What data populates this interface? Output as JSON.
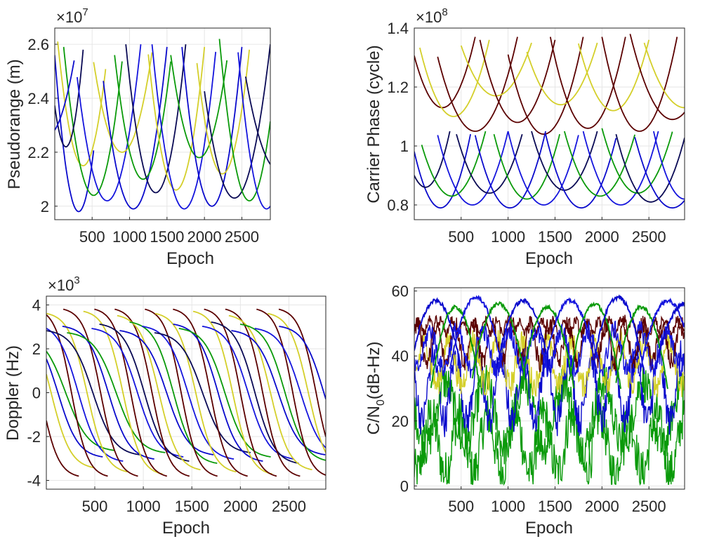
{
  "figure": {
    "colors": [
      "#d4cf2a",
      "#5b0000",
      "#0a9a0a",
      "#0a0acc",
      "#0a0a55",
      "#1515dd"
    ]
  },
  "chart_data": [
    {
      "id": "pseudorange",
      "type": "line",
      "ylabel": "Pseudorange (m)",
      "xlabel": "Epoch",
      "exponent_base": "×10",
      "exponent": "7",
      "xlim": [
        1,
        2880
      ],
      "ylim": [
        19.5,
        26.6
      ],
      "xticks": [
        500,
        1000,
        1500,
        2000,
        2500
      ],
      "xtick_labels": [
        "500",
        "1000",
        "1500",
        "2000",
        "2500"
      ],
      "yticks": [
        20,
        22,
        24,
        26
      ],
      "ytick_labels": [
        "2",
        "2.2",
        "2.4",
        "2.6"
      ],
      "grid": true,
      "legend": "none",
      "arcs": [
        {
          "c": 3,
          "x0": 0,
          "x1": 520,
          "xm": 320,
          "ymin": 19.8,
          "ytop": 25.6
        },
        {
          "c": 0,
          "x0": 40,
          "x1": 680,
          "xm": 380,
          "ymin": 21.5,
          "ytop": 26.1
        },
        {
          "c": 2,
          "x0": 120,
          "x1": 900,
          "xm": 520,
          "ymin": 20.4,
          "ytop": 25.9
        },
        {
          "c": 4,
          "x0": 0,
          "x1": 380,
          "xm": 150,
          "ymin": 22.2,
          "ytop": 25.8
        },
        {
          "c": 5,
          "x0": 300,
          "x1": 1150,
          "xm": 700,
          "ymin": 20.2,
          "ytop": 26.0
        },
        {
          "c": 0,
          "x0": 520,
          "x1": 1300,
          "xm": 900,
          "ymin": 22.0,
          "ytop": 25.7
        },
        {
          "c": 3,
          "x0": 650,
          "x1": 1500,
          "xm": 1050,
          "ymin": 19.9,
          "ytop": 25.9
        },
        {
          "c": 2,
          "x0": 800,
          "x1": 1550,
          "xm": 1180,
          "ymin": 21.0,
          "ytop": 25.6
        },
        {
          "c": 4,
          "x0": 950,
          "x1": 1750,
          "xm": 1350,
          "ymin": 20.5,
          "ytop": 26.0
        },
        {
          "c": 0,
          "x0": 1250,
          "x1": 2000,
          "xm": 1620,
          "ymin": 20.6,
          "ytop": 25.9
        },
        {
          "c": 5,
          "x0": 1300,
          "x1": 2150,
          "xm": 1730,
          "ymin": 19.9,
          "ytop": 26.0
        },
        {
          "c": 2,
          "x0": 1550,
          "x1": 2300,
          "xm": 1930,
          "ymin": 21.8,
          "ytop": 25.6
        },
        {
          "c": 3,
          "x0": 1700,
          "x1": 2500,
          "xm": 2100,
          "ymin": 20.0,
          "ytop": 25.9
        },
        {
          "c": 0,
          "x0": 1900,
          "x1": 2600,
          "xm": 2240,
          "ymin": 21.2,
          "ytop": 25.8
        },
        {
          "c": 4,
          "x0": 2000,
          "x1": 2880,
          "xm": 2400,
          "ymin": 20.3,
          "ytop": 26.0
        },
        {
          "c": 2,
          "x0": 2200,
          "x1": 2880,
          "xm": 2600,
          "ymin": 20.2,
          "ytop": 26.2
        },
        {
          "c": 5,
          "x0": 2450,
          "x1": 2880,
          "xm": 2830,
          "ymin": 19.9,
          "ytop": 25.7
        },
        {
          "c": 3,
          "x0": 0,
          "x1": 260,
          "xm": -100,
          "ymin": 22.6,
          "ytop": 25.4
        },
        {
          "c": 4,
          "x0": 2550,
          "x1": 2880,
          "xm": 3000,
          "ymin": 21.3,
          "ytop": 24.8
        }
      ]
    },
    {
      "id": "carrier_phase",
      "type": "line",
      "ylabel": "Carrier Phase (cycle)",
      "xlabel": "Epoch",
      "exponent_base": "×10",
      "exponent": "8",
      "xlim": [
        1,
        2880
      ],
      "ylim": [
        0.75,
        1.4
      ],
      "xticks": [
        500,
        1000,
        1500,
        2000,
        2500
      ],
      "xtick_labels": [
        "500",
        "1000",
        "1500",
        "2000",
        "2500"
      ],
      "yticks": [
        0.8,
        1.0,
        1.2,
        1.4
      ],
      "ytick_labels": [
        "0.8",
        "1",
        "1.2",
        "1.4"
      ],
      "grid": true,
      "legend": "none",
      "arcs": [
        {
          "c": 1,
          "x0": 0,
          "x1": 650,
          "xm": 300,
          "ymin": 1.13,
          "ytop": 1.37
        },
        {
          "c": 0,
          "x0": 60,
          "x1": 800,
          "xm": 420,
          "ymin": 1.1,
          "ytop": 1.36
        },
        {
          "c": 1,
          "x0": 250,
          "x1": 1100,
          "xm": 650,
          "ymin": 1.05,
          "ytop": 1.37
        },
        {
          "c": 0,
          "x0": 500,
          "x1": 1250,
          "xm": 870,
          "ymin": 1.17,
          "ytop": 1.35
        },
        {
          "c": 1,
          "x0": 700,
          "x1": 1500,
          "xm": 1100,
          "ymin": 1.08,
          "ytop": 1.36
        },
        {
          "c": 1,
          "x0": 1000,
          "x1": 1800,
          "xm": 1380,
          "ymin": 1.04,
          "ytop": 1.37
        },
        {
          "c": 0,
          "x0": 1200,
          "x1": 1950,
          "xm": 1560,
          "ymin": 1.14,
          "ytop": 1.35
        },
        {
          "c": 1,
          "x0": 1450,
          "x1": 2250,
          "xm": 1850,
          "ymin": 1.06,
          "ytop": 1.37
        },
        {
          "c": 0,
          "x0": 1750,
          "x1": 2500,
          "xm": 2120,
          "ymin": 1.12,
          "ytop": 1.36
        },
        {
          "c": 1,
          "x0": 2000,
          "x1": 2800,
          "xm": 2400,
          "ymin": 1.05,
          "ytop": 1.37
        },
        {
          "c": 1,
          "x0": 2300,
          "x1": 2880,
          "xm": 2750,
          "ymin": 1.09,
          "ytop": 1.38
        },
        {
          "c": 0,
          "x0": 2450,
          "x1": 2880,
          "xm": 2880,
          "ymin": 1.13,
          "ytop": 1.35
        },
        {
          "c": 3,
          "x0": 0,
          "x1": 600,
          "xm": 280,
          "ymin": 0.79,
          "ytop": 1.04
        },
        {
          "c": 4,
          "x0": 0,
          "x1": 380,
          "xm": 120,
          "ymin": 0.86,
          "ytop": 1.05
        },
        {
          "c": 2,
          "x0": 80,
          "x1": 760,
          "xm": 400,
          "ymin": 0.83,
          "ytop": 1.05
        },
        {
          "c": 5,
          "x0": 250,
          "x1": 1000,
          "xm": 620,
          "ymin": 0.8,
          "ytop": 1.05
        },
        {
          "c": 4,
          "x0": 450,
          "x1": 1150,
          "xm": 800,
          "ymin": 0.84,
          "ytop": 1.04
        },
        {
          "c": 3,
          "x0": 650,
          "x1": 1400,
          "xm": 1020,
          "ymin": 0.79,
          "ytop": 1.05
        },
        {
          "c": 2,
          "x0": 850,
          "x1": 1550,
          "xm": 1200,
          "ymin": 0.82,
          "ytop": 1.04
        },
        {
          "c": 5,
          "x0": 1000,
          "x1": 1750,
          "xm": 1380,
          "ymin": 0.8,
          "ytop": 1.05
        },
        {
          "c": 4,
          "x0": 1250,
          "x1": 1950,
          "xm": 1600,
          "ymin": 0.85,
          "ytop": 1.05
        },
        {
          "c": 3,
          "x0": 1400,
          "x1": 2150,
          "xm": 1780,
          "ymin": 0.79,
          "ytop": 1.04
        },
        {
          "c": 2,
          "x0": 1600,
          "x1": 2350,
          "xm": 1980,
          "ymin": 0.83,
          "ytop": 1.05
        },
        {
          "c": 5,
          "x0": 1800,
          "x1": 2600,
          "xm": 2200,
          "ymin": 0.8,
          "ytop": 1.05
        },
        {
          "c": 2,
          "x0": 2000,
          "x1": 2750,
          "xm": 2380,
          "ymin": 0.84,
          "ytop": 1.06
        },
        {
          "c": 4,
          "x0": 2150,
          "x1": 2880,
          "xm": 2520,
          "ymin": 0.81,
          "ytop": 1.04
        },
        {
          "c": 3,
          "x0": 2350,
          "x1": 2880,
          "xm": 2750,
          "ymin": 0.79,
          "ytop": 1.03
        },
        {
          "c": 5,
          "x0": 2550,
          "x1": 2880,
          "xm": 2880,
          "ymin": 0.82,
          "ytop": 1.05
        }
      ]
    },
    {
      "id": "doppler",
      "type": "line",
      "ylabel": "Doppler (Hz)",
      "xlabel": "Epoch",
      "exponent_base": "×10",
      "exponent": "3",
      "xlim": [
        1,
        2880
      ],
      "ylim": [
        -4.4,
        4.4
      ],
      "xticks": [
        500,
        1000,
        1500,
        2000,
        2500
      ],
      "xtick_labels": [
        "500",
        "1000",
        "1500",
        "2000",
        "2500"
      ],
      "yticks": [
        -4,
        -2,
        0,
        2,
        4
      ],
      "ytick_labels": [
        "-4",
        "-2",
        "0",
        "2",
        "4"
      ],
      "grid": true,
      "legend": "none",
      "curves": [
        {
          "c": 1,
          "xc": -60,
          "amp": 3.9,
          "w": 180
        },
        {
          "c": 0,
          "xc": 50,
          "amp": 3.5,
          "w": 200
        },
        {
          "c": 3,
          "xc": 120,
          "amp": 3.0,
          "w": 210
        },
        {
          "c": 2,
          "xc": 200,
          "amp": 2.7,
          "w": 230
        },
        {
          "c": 1,
          "xc": 260,
          "amp": 3.9,
          "w": 170
        },
        {
          "c": 5,
          "xc": 330,
          "amp": 3.2,
          "w": 210
        },
        {
          "c": 0,
          "xc": 420,
          "amp": 3.7,
          "w": 190
        },
        {
          "c": 4,
          "xc": 480,
          "amp": 2.9,
          "w": 220
        },
        {
          "c": 1,
          "xc": 560,
          "amp": 3.9,
          "w": 175
        },
        {
          "c": 3,
          "xc": 640,
          "amp": 3.1,
          "w": 215
        },
        {
          "c": 2,
          "xc": 720,
          "amp": 2.8,
          "w": 230
        },
        {
          "c": 0,
          "xc": 790,
          "amp": 3.8,
          "w": 185
        },
        {
          "c": 1,
          "xc": 870,
          "amp": 3.9,
          "w": 170
        },
        {
          "c": 5,
          "xc": 940,
          "amp": 3.0,
          "w": 215
        },
        {
          "c": 4,
          "xc": 1010,
          "amp": 3.2,
          "w": 210
        },
        {
          "c": 1,
          "xc": 1090,
          "amp": 3.9,
          "w": 175
        },
        {
          "c": 0,
          "xc": 1160,
          "amp": 3.6,
          "w": 195
        },
        {
          "c": 3,
          "xc": 1240,
          "amp": 2.9,
          "w": 220
        },
        {
          "c": 2,
          "xc": 1310,
          "amp": 3.3,
          "w": 205
        },
        {
          "c": 1,
          "xc": 1390,
          "amp": 3.9,
          "w": 170
        },
        {
          "c": 5,
          "xc": 1460,
          "amp": 3.1,
          "w": 215
        },
        {
          "c": 0,
          "xc": 1540,
          "amp": 3.7,
          "w": 190
        },
        {
          "c": 4,
          "xc": 1610,
          "amp": 2.8,
          "w": 225
        },
        {
          "c": 1,
          "xc": 1690,
          "amp": 3.9,
          "w": 175
        },
        {
          "c": 3,
          "xc": 1770,
          "amp": 3.2,
          "w": 210
        },
        {
          "c": 2,
          "xc": 1840,
          "amp": 3.0,
          "w": 215
        },
        {
          "c": 0,
          "xc": 1920,
          "amp": 3.8,
          "w": 185
        },
        {
          "c": 1,
          "xc": 2000,
          "amp": 3.9,
          "w": 170
        },
        {
          "c": 5,
          "xc": 2080,
          "amp": 3.1,
          "w": 215
        },
        {
          "c": 4,
          "xc": 2150,
          "amp": 3.3,
          "w": 205
        },
        {
          "c": 1,
          "xc": 2230,
          "amp": 3.9,
          "w": 175
        },
        {
          "c": 0,
          "xc": 2310,
          "amp": 3.6,
          "w": 195
        },
        {
          "c": 3,
          "xc": 2390,
          "amp": 2.9,
          "w": 220
        },
        {
          "c": 2,
          "xc": 2460,
          "amp": 3.2,
          "w": 210
        },
        {
          "c": 1,
          "xc": 2540,
          "amp": 3.9,
          "w": 170
        },
        {
          "c": 5,
          "xc": 2620,
          "amp": 3.0,
          "w": 215
        },
        {
          "c": 0,
          "xc": 2700,
          "amp": 3.7,
          "w": 190
        },
        {
          "c": 1,
          "xc": 2780,
          "amp": 3.9,
          "w": 175
        },
        {
          "c": 3,
          "xc": 2860,
          "amp": 3.1,
          "w": 210
        }
      ]
    },
    {
      "id": "cn0",
      "type": "line",
      "ylabel": "C/N",
      "ylabel_sub": "0",
      "ylabel_tail": "(dB-Hz)",
      "xlabel": "Epoch",
      "xlim": [
        1,
        2880
      ],
      "ylim": [
        -1,
        61
      ],
      "xticks": [
        500,
        1000,
        1500,
        2000,
        2500
      ],
      "xtick_labels": [
        "500",
        "1000",
        "1500",
        "2000",
        "2500"
      ],
      "yticks": [
        0,
        20,
        40,
        60
      ],
      "ytick_labels": [
        "0",
        "20",
        "40",
        "60"
      ],
      "grid": true,
      "legend": "none",
      "bands": [
        {
          "c": 2,
          "base": 13,
          "amp": 9,
          "period": 300,
          "noise": 7
        },
        {
          "c": 2,
          "base": 22,
          "amp": 10,
          "period": 420,
          "noise": 6
        },
        {
          "c": 3,
          "base": 30,
          "amp": 10,
          "period": 240,
          "noise": 5
        },
        {
          "c": 0,
          "base": 38,
          "amp": 7,
          "period": 260,
          "noise": 4
        },
        {
          "c": 1,
          "base": 44,
          "amp": 6,
          "period": 200,
          "noise": 3
        },
        {
          "c": 1,
          "base": 49,
          "amp": 2,
          "period": 120,
          "noise": 1.5
        },
        {
          "c": 5,
          "base": 42,
          "amp": 6,
          "period": 280,
          "noise": 3
        }
      ],
      "arcs": [
        {
          "c": 3,
          "x0": 0,
          "x1": 500,
          "xm": 230,
          "ytop": 57,
          "ybase": 36
        },
        {
          "c": 2,
          "x0": 180,
          "x1": 700,
          "xm": 440,
          "ytop": 55,
          "ybase": 30
        },
        {
          "c": 5,
          "x0": 380,
          "x1": 950,
          "xm": 660,
          "ytop": 58,
          "ybase": 34
        },
        {
          "c": 2,
          "x0": 620,
          "x1": 1200,
          "xm": 900,
          "ytop": 56,
          "ybase": 30
        },
        {
          "c": 3,
          "x0": 880,
          "x1": 1450,
          "xm": 1160,
          "ytop": 57,
          "ybase": 35
        },
        {
          "c": 2,
          "x0": 1150,
          "x1": 1700,
          "xm": 1420,
          "ytop": 55,
          "ybase": 30
        },
        {
          "c": 5,
          "x0": 1380,
          "x1": 1950,
          "xm": 1660,
          "ytop": 57,
          "ybase": 34
        },
        {
          "c": 2,
          "x0": 1650,
          "x1": 2200,
          "xm": 1920,
          "ytop": 56,
          "ybase": 30
        },
        {
          "c": 3,
          "x0": 1900,
          "x1": 2450,
          "xm": 2170,
          "ytop": 58,
          "ybase": 35
        },
        {
          "c": 2,
          "x0": 2150,
          "x1": 2700,
          "xm": 2420,
          "ytop": 55,
          "ybase": 30
        },
        {
          "c": 5,
          "x0": 2400,
          "x1": 2880,
          "xm": 2700,
          "ytop": 57,
          "ybase": 34
        },
        {
          "c": 3,
          "x0": 2600,
          "x1": 2880,
          "xm": 2880,
          "ytop": 56,
          "ybase": 40
        }
      ]
    }
  ]
}
